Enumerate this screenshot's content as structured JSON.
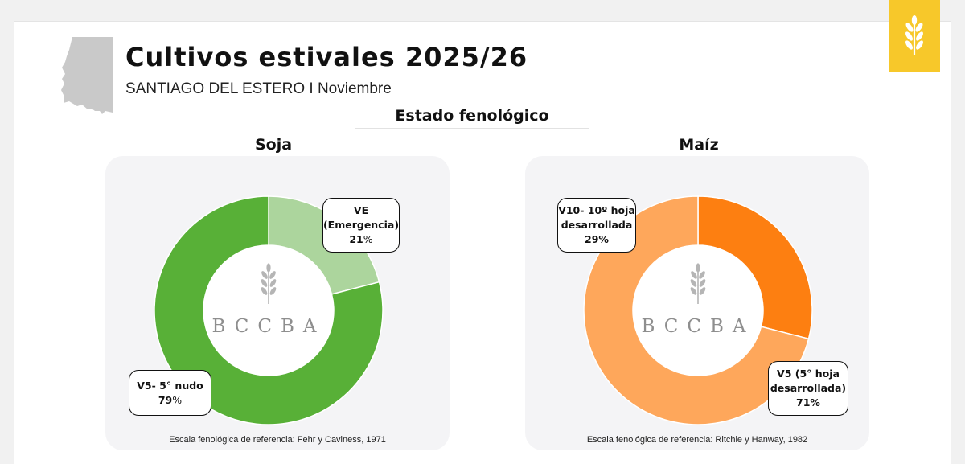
{
  "header": {
    "title": "Cultivos estivales 2025/26",
    "subtitle": "SANTIAGO DEL ESTERO I Noviembre",
    "section_title": "Estado fenológico",
    "logo_icon": "wheat-icon",
    "badge_color": "#f7c82a"
  },
  "watermark": "BCCBA",
  "chart_data": [
    {
      "type": "pie",
      "title": "Soja",
      "donut": true,
      "categories": [
        "VE (Emergencia)",
        "V5- 5° nudo"
      ],
      "values": [
        21,
        79
      ],
      "unit": "%",
      "colors": [
        "#acd59d",
        "#58b037"
      ],
      "labels": [
        {
          "lines": [
            "VE",
            "(Emergencia)"
          ],
          "value": "21"
        },
        {
          "lines": [
            "V5- 5° nudo"
          ],
          "value": "79"
        }
      ],
      "footnote": "Escala fenológica de referencia: Fehr y Caviness, 1971"
    },
    {
      "type": "pie",
      "title": "Maíz",
      "donut": true,
      "categories": [
        "V10- 10º hoja desarrollada",
        "V5 (5° hoja desarrollada)"
      ],
      "values": [
        29,
        71
      ],
      "unit": "%",
      "colors": [
        "#fd7f11",
        "#fea75b"
      ],
      "labels": [
        {
          "lines": [
            "V10- 10º hoja",
            "desarrollada"
          ],
          "value": "29%"
        },
        {
          "lines": [
            "V5 (5° hoja",
            "desarrollada)"
          ],
          "value": "71%"
        }
      ],
      "footnote": "Escala fenológica de referencia: Ritchie y Hanway, 1982"
    }
  ]
}
